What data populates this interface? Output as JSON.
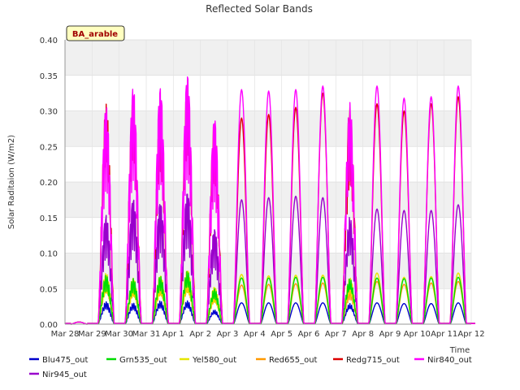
{
  "chart_data": {
    "type": "line",
    "title": "Reflected Solar Bands",
    "xlabel": "Time",
    "ylabel": "Solar Raditaion (W/m2)",
    "site_badge": "BA_arable",
    "xlim": [
      0,
      15
    ],
    "ylim": [
      0,
      0.4
    ],
    "yticks": [
      0.0,
      0.05,
      0.1,
      0.15,
      0.2,
      0.25,
      0.3,
      0.35,
      0.4
    ],
    "ytick_labels": [
      "0.00",
      "0.05",
      "0.10",
      "0.15",
      "0.20",
      "0.25",
      "0.30",
      "0.35",
      "0.40"
    ],
    "xticks": [
      0,
      1,
      2,
      3,
      4,
      5,
      6,
      7,
      8,
      9,
      10,
      11,
      12,
      13,
      14,
      15
    ],
    "xtick_labels": [
      "Mar 28",
      "Mar 29",
      "Mar 30",
      "Mar 31",
      "Apr 1",
      "Apr 2",
      "Apr 3",
      "Apr 4",
      "Apr 5",
      "Apr 6",
      "Apr 7",
      "Apr 8",
      "Apr 9",
      "Apr 10",
      "Apr 11",
      "Apr 12"
    ],
    "grid": "horizontal bands",
    "legend_position": "bottom",
    "days": [
      "Mar 28",
      "Mar 29",
      "Mar 30",
      "Mar 31",
      "Apr 1",
      "Apr 2",
      "Apr 3",
      "Apr 4",
      "Apr 5",
      "Apr 6",
      "Apr 7",
      "Apr 8",
      "Apr 9",
      "Apr 10",
      "Apr 11"
    ],
    "series": [
      {
        "name": "Blu475_out",
        "color": "#0000cc",
        "daily_peak": [
          0.003,
          0.032,
          0.03,
          0.033,
          0.033,
          0.02,
          0.03,
          0.03,
          0.03,
          0.03,
          0.029,
          0.03,
          0.029,
          0.029,
          0.03
        ]
      },
      {
        "name": "Grn535_out",
        "color": "#00dd00",
        "daily_peak": [
          0.003,
          0.07,
          0.065,
          0.068,
          0.075,
          0.05,
          0.065,
          0.065,
          0.066,
          0.066,
          0.064,
          0.065,
          0.064,
          0.065,
          0.066
        ]
      },
      {
        "name": "Yel580_out",
        "color": "#e6e600",
        "daily_peak": [
          0.003,
          0.075,
          0.068,
          0.072,
          0.08,
          0.055,
          0.07,
          0.068,
          0.069,
          0.069,
          0.067,
          0.072,
          0.066,
          0.067,
          0.072
        ]
      },
      {
        "name": "Red655_out",
        "color": "#ff9900",
        "daily_peak": [
          0.003,
          0.06,
          0.055,
          0.058,
          0.065,
          0.045,
          0.055,
          0.056,
          0.057,
          0.058,
          0.056,
          0.06,
          0.056,
          0.058,
          0.06
        ]
      },
      {
        "name": "Redg715_out",
        "color": "#dd0000",
        "daily_peak": [
          0.003,
          0.31,
          0.32,
          0.3,
          0.34,
          0.29,
          0.29,
          0.295,
          0.305,
          0.325,
          0.315,
          0.31,
          0.3,
          0.31,
          0.32
        ]
      },
      {
        "name": "Nir840_out",
        "color": "#ff00ff",
        "daily_peak": [
          0.003,
          0.32,
          0.35,
          0.35,
          0.37,
          0.305,
          0.33,
          0.328,
          0.33,
          0.335,
          0.32,
          0.335,
          0.318,
          0.32,
          0.335
        ]
      },
      {
        "name": "Nir945_out",
        "color": "#9900cc",
        "daily_peak": [
          0.003,
          0.16,
          0.185,
          0.18,
          0.195,
          0.14,
          0.175,
          0.178,
          0.18,
          0.178,
          0.155,
          0.162,
          0.16,
          0.16,
          0.168
        ]
      }
    ]
  }
}
